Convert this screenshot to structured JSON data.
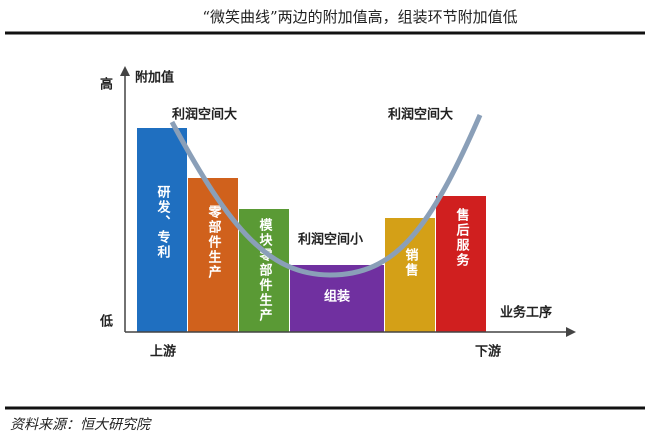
{
  "header": {
    "title": "“微笑曲线”两边的附加值高，组装环节附加值低"
  },
  "diagram": {
    "y_axis_label": "附加值",
    "y_high": "高",
    "y_low": "低",
    "x_axis_label": "业务工序",
    "x_start": "上游",
    "x_end": "下游",
    "bars": [
      {
        "label": "研发、专利"
      },
      {
        "label": "零部件生产"
      },
      {
        "label": "模块零部件生产"
      },
      {
        "label": "组装"
      },
      {
        "label": "销售"
      },
      {
        "label": "售后服务"
      }
    ],
    "curve_labels": [
      "利润空间大",
      "利润空间小",
      "利润空间大"
    ]
  },
  "footer": {
    "source": "资料来源：恒大研究院"
  }
}
